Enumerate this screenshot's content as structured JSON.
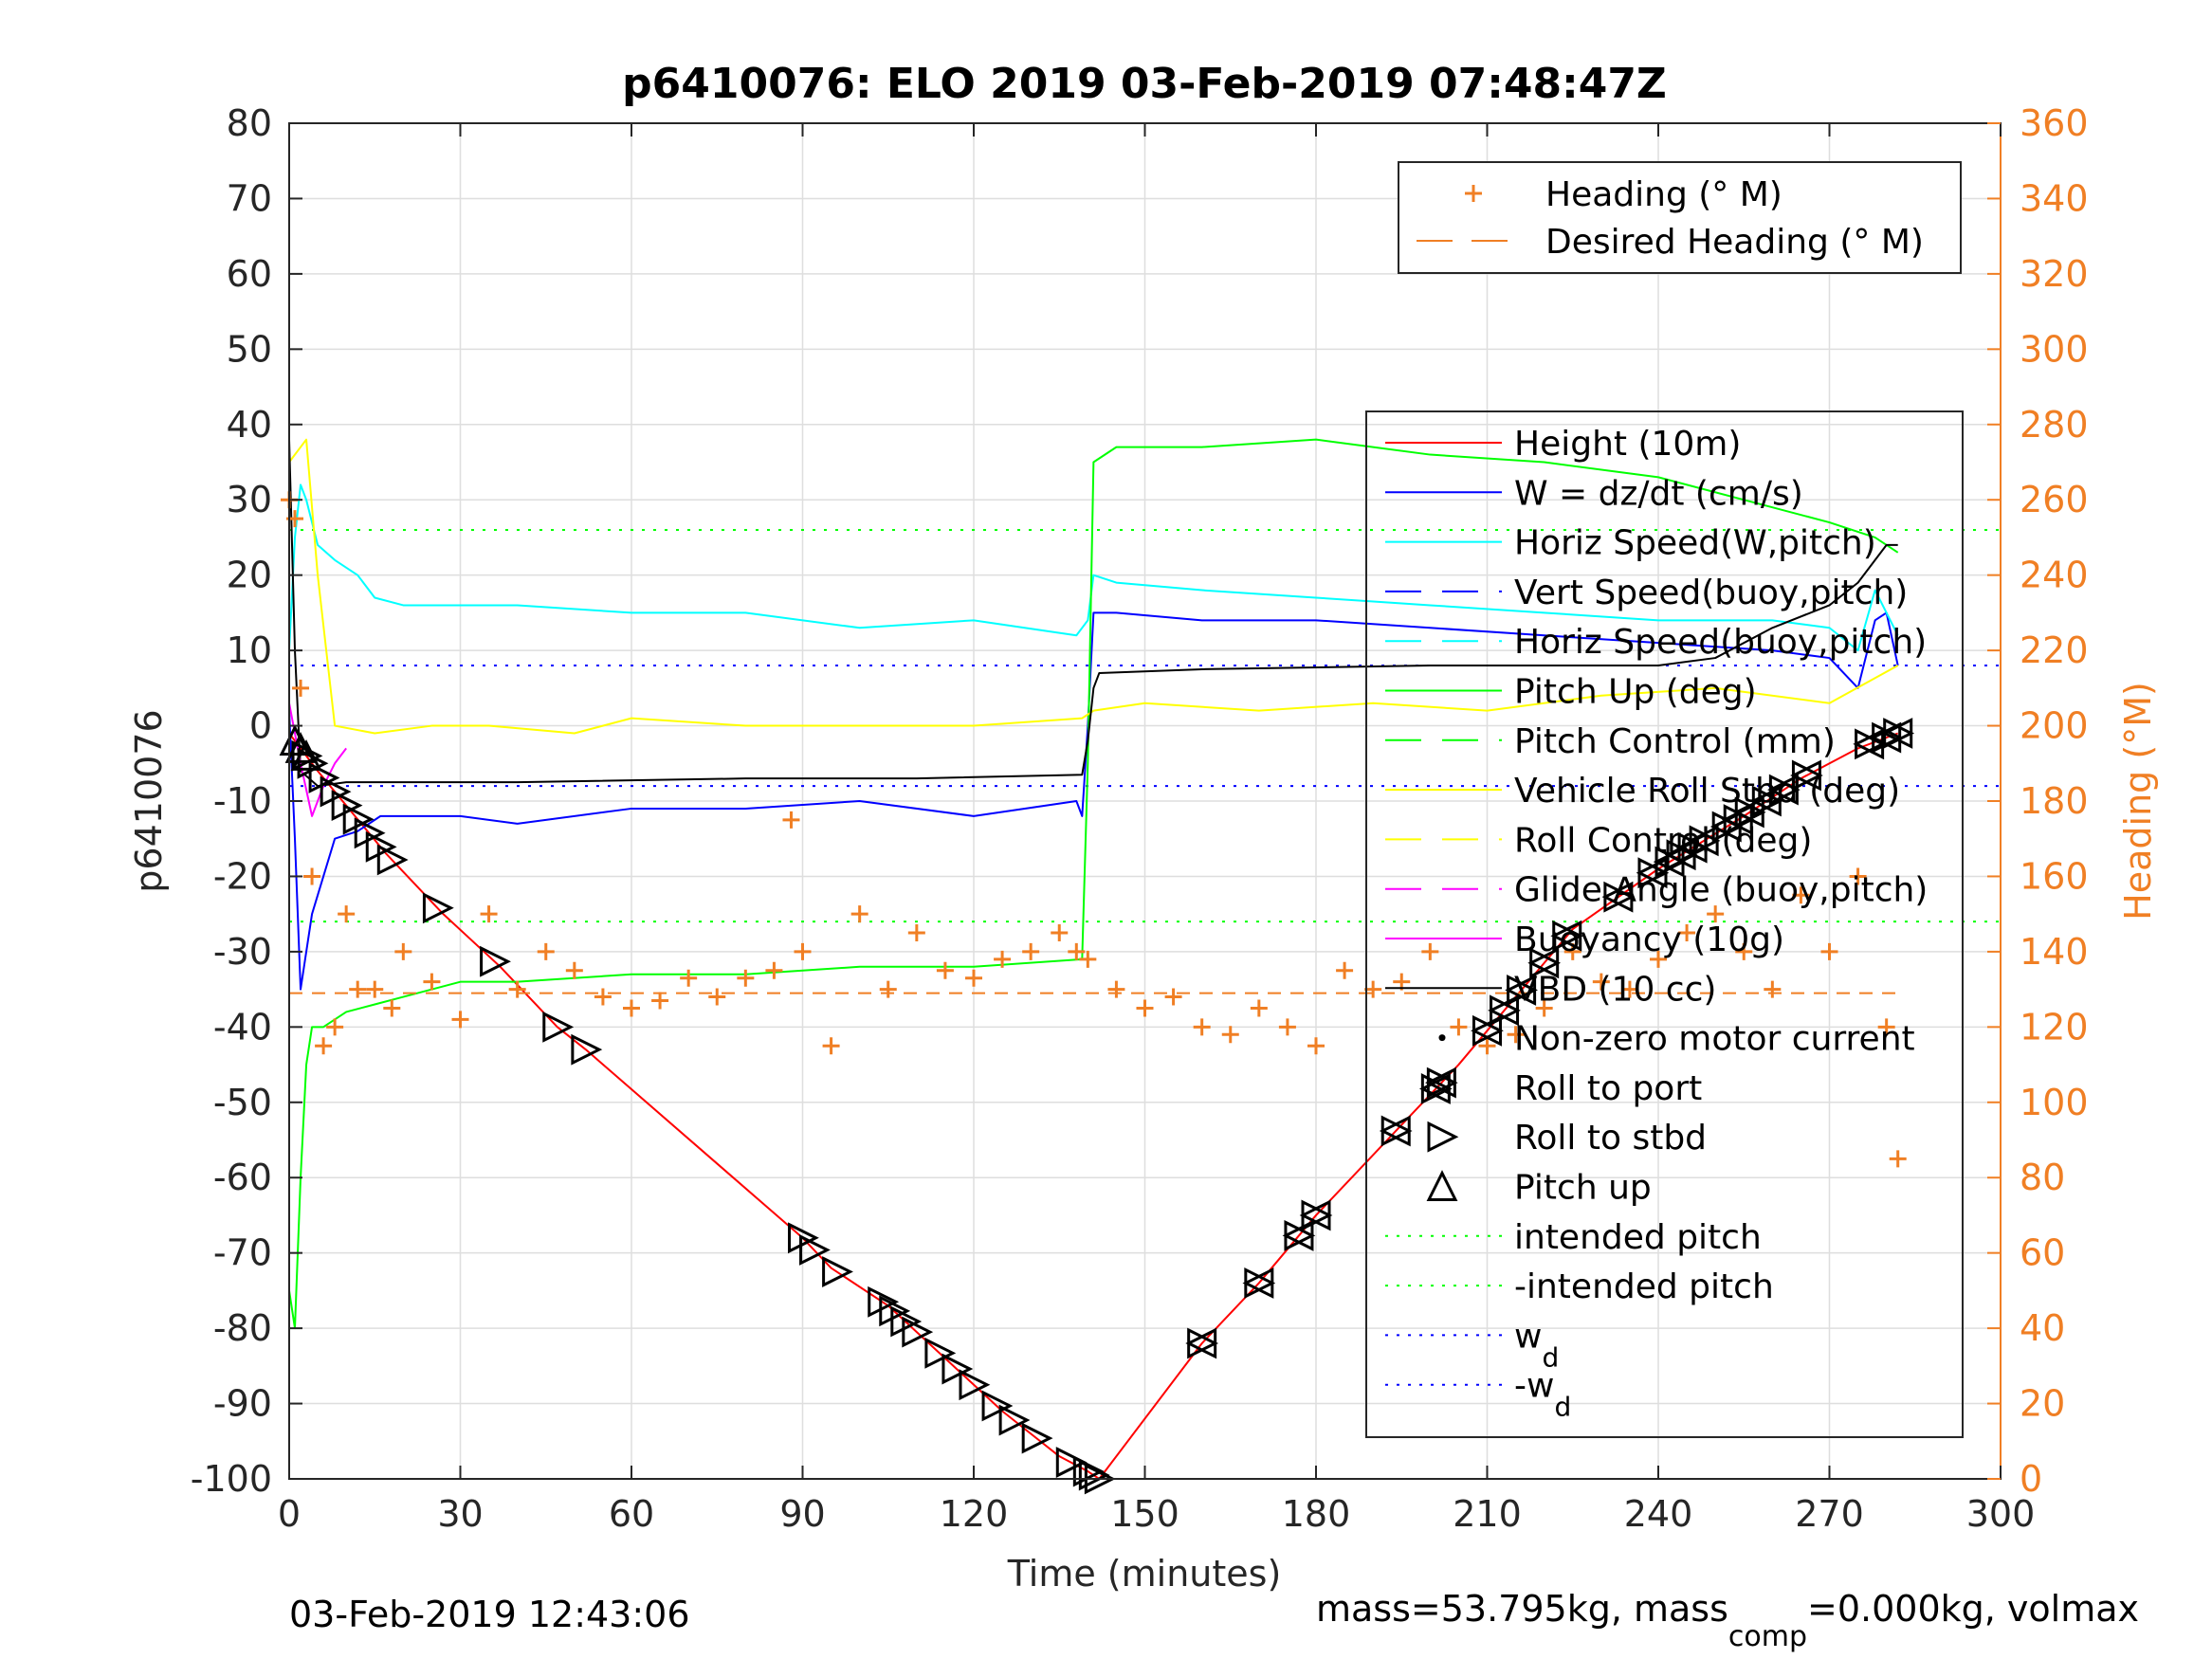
{
  "chart_data": {
    "type": "line",
    "title": "p6410076: ELO 2019 03-Feb-2019 07:48:47Z",
    "xlabel": "Time (minutes)",
    "ylabel": "p6410076",
    "ylabel_right": "Heading (°M)",
    "xlim": [
      0,
      300
    ],
    "ylim": [
      -100,
      80
    ],
    "ylim_right": [
      0,
      360
    ],
    "x_ticks": [
      0,
      30,
      60,
      90,
      120,
      150,
      180,
      210,
      240,
      270,
      300
    ],
    "y_ticks": [
      80,
      70,
      60,
      50,
      40,
      30,
      20,
      10,
      0,
      -10,
      -20,
      -30,
      -40,
      -50,
      -60,
      -70,
      -80,
      -90,
      -100
    ],
    "y_ticks_right": [
      360,
      340,
      320,
      300,
      280,
      260,
      240,
      220,
      200,
      180,
      160,
      140,
      120,
      100,
      80,
      60,
      40,
      20,
      0
    ],
    "grid": true,
    "legend_heading": [
      "Heading (° M)",
      "Desired Heading (° M)"
    ],
    "legend_main": [
      {
        "label": "Height (10m)",
        "color": "#ff0000",
        "style": "solid"
      },
      {
        "label": "W = dz/dt (cm/s)",
        "color": "#0000ff",
        "style": "solid"
      },
      {
        "label": "Horiz Speed(W,pitch)",
        "color": "#00ffff",
        "style": "solid"
      },
      {
        "label": "Vert Speed(buoy,pitch)",
        "color": "#0000ff",
        "style": "dashed"
      },
      {
        "label": "Horiz Speed(buoy,pitch)",
        "color": "#00ffff",
        "style": "dashed"
      },
      {
        "label": "Pitch Up (deg)",
        "color": "#00ff00",
        "style": "solid"
      },
      {
        "label": "Pitch Control (mm)",
        "color": "#00ff00",
        "style": "dashed"
      },
      {
        "label": "Vehicle Roll Stbd (deg)",
        "color": "#ffff00",
        "style": "solid"
      },
      {
        "label": "Roll Control (deg)",
        "color": "#ffff00",
        "style": "dashed"
      },
      {
        "label": "Glide Angle (buoy,pitch)",
        "color": "#ff00ff",
        "style": "dashed"
      },
      {
        "label": "Buoyancy (10g)",
        "color": "#ff00ff",
        "style": "solid"
      },
      {
        "label": "VBD (10 cc)",
        "color": "#000000",
        "style": "solid"
      },
      {
        "label": "Non-zero motor current",
        "color": "#000000",
        "style": "dot"
      },
      {
        "label": "Roll to port",
        "color": "#000000",
        "style": "triangle-left"
      },
      {
        "label": "Roll to stbd",
        "color": "#000000",
        "style": "triangle-right"
      },
      {
        "label": "Pitch up",
        "color": "#000000",
        "style": "triangle-up"
      },
      {
        "label": "intended pitch",
        "color": "#00ff00",
        "style": "dotted"
      },
      {
        "label": "-intended pitch",
        "color": "#00ff00",
        "style": "dotted"
      },
      {
        "label": "w",
        "sub": "d",
        "color": "#0000ff",
        "style": "dotted"
      },
      {
        "label": "-w",
        "sub": "d",
        "color": "#0000ff",
        "style": "dotted"
      }
    ],
    "series": [
      {
        "name": "Height (10m)",
        "color": "#ff0000",
        "x": [
          0,
          5,
          17,
          27,
          37,
          47,
          52,
          90,
          95,
          105,
          115,
          125,
          135,
          140,
          142,
          160,
          170,
          180,
          195,
          205,
          215,
          225,
          240,
          255,
          265,
          275,
          282
        ],
        "y": [
          -1,
          -6,
          -17,
          -25,
          -32,
          -40,
          -43,
          -68,
          -72,
          -77,
          -84,
          -91,
          -97,
          -99,
          -100,
          -82,
          -74,
          -65,
          -53,
          -45,
          -36,
          -27,
          -19,
          -12,
          -7,
          -3,
          -1
        ]
      },
      {
        "name": "W = dz/dt (cm/s)",
        "color": "#0000ff",
        "x": [
          0,
          1,
          2,
          4,
          6,
          8,
          12,
          16,
          20,
          30,
          40,
          60,
          80,
          100,
          120,
          138,
          139,
          140,
          141,
          145,
          160,
          180,
          200,
          220,
          240,
          260,
          270,
          275,
          278,
          280,
          282
        ],
        "y": [
          2,
          -15,
          -35,
          -25,
          -20,
          -15,
          -14,
          -12,
          -12,
          -12,
          -13,
          -11,
          -11,
          -10,
          -12,
          -10,
          -12,
          0,
          15,
          15,
          14,
          14,
          13,
          12,
          11,
          10,
          9,
          5,
          14,
          15,
          8
        ]
      },
      {
        "name": "Horiz Speed(W,pitch)",
        "color": "#00ffff",
        "x": [
          0,
          1,
          2,
          3,
          5,
          8,
          12,
          15,
          20,
          30,
          40,
          60,
          80,
          100,
          120,
          138,
          140,
          141,
          145,
          160,
          180,
          200,
          220,
          240,
          260,
          270,
          275,
          278,
          282
        ],
        "y": [
          10,
          25,
          32,
          30,
          24,
          22,
          20,
          17,
          16,
          16,
          16,
          15,
          15,
          13,
          14,
          12,
          14,
          20,
          19,
          18,
          17,
          16,
          15,
          14,
          14,
          13,
          10,
          18,
          12
        ]
      },
      {
        "name": "Pitch Up (deg)",
        "color": "#00ff00",
        "x": [
          0,
          1,
          2,
          3,
          4,
          6,
          10,
          15,
          20,
          30,
          40,
          60,
          80,
          100,
          120,
          139,
          140,
          141,
          145,
          160,
          180,
          190,
          200,
          220,
          240,
          260,
          270,
          278,
          282
        ],
        "y": [
          -75,
          -80,
          -60,
          -45,
          -40,
          -40,
          -38,
          -37,
          -36,
          -34,
          -34,
          -33,
          -33,
          -32,
          -32,
          -31,
          -5,
          35,
          37,
          37,
          38,
          37,
          36,
          35,
          33,
          29,
          27,
          25,
          23
        ]
      },
      {
        "name": "Vehicle Roll Stbd (deg)",
        "color": "#ffff00",
        "x": [
          0,
          3,
          5,
          8,
          15,
          25,
          35,
          50,
          60,
          80,
          100,
          120,
          139,
          141,
          150,
          170,
          190,
          210,
          230,
          250,
          270,
          282
        ],
        "y": [
          35,
          38,
          20,
          0,
          -1,
          0,
          0,
          -1,
          1,
          0,
          0,
          0,
          1,
          2,
          3,
          2,
          3,
          2,
          4,
          5,
          3,
          8
        ]
      },
      {
        "name": "VBD (10 cc)",
        "color": "#000000",
        "x": [
          0,
          1,
          2,
          5,
          10,
          40,
          80,
          110,
          139,
          140,
          141,
          142,
          160,
          200,
          240,
          250,
          260,
          270,
          275,
          280,
          282
        ],
        "y": [
          38,
          10,
          -6,
          -8,
          -7.5,
          -7.5,
          -7,
          -7,
          -6.5,
          -2,
          5,
          7,
          7.5,
          8,
          8,
          9,
          13,
          16,
          19,
          24,
          24
        ]
      },
      {
        "name": "Buoyancy (10g)",
        "color": "#ff00ff",
        "x": [
          0,
          2,
          4,
          6,
          8,
          10
        ],
        "y": [
          3,
          -5,
          -12,
          -8,
          -5,
          -3
        ]
      },
      {
        "name": "Heading (° M)",
        "axis": "right",
        "color": "#f07f24",
        "marker": "+",
        "x": [
          0,
          1,
          2,
          4,
          6,
          8,
          10,
          12,
          15,
          18,
          20,
          25,
          30,
          35,
          40,
          45,
          50,
          55,
          60,
          65,
          70,
          75,
          80,
          85,
          88,
          90,
          95,
          100,
          105,
          110,
          115,
          120,
          125,
          130,
          135,
          138,
          140,
          145,
          150,
          155,
          160,
          165,
          170,
          175,
          180,
          185,
          190,
          195,
          200,
          205,
          210,
          215,
          220,
          225,
          230,
          235,
          240,
          245,
          250,
          255,
          260,
          265,
          270,
          275,
          280,
          282
        ],
        "y": [
          260,
          255,
          210,
          160,
          115,
          120,
          150,
          130,
          130,
          125,
          140,
          132,
          122,
          150,
          130,
          140,
          135,
          128,
          125,
          127,
          133,
          128,
          133,
          135,
          175,
          140,
          115,
          150,
          130,
          145,
          135,
          133,
          138,
          140,
          145,
          140,
          138,
          130,
          125,
          128,
          120,
          118,
          125,
          120,
          115,
          135,
          130,
          132,
          140,
          120,
          115,
          118,
          125,
          140,
          132,
          130,
          138,
          145,
          150,
          140,
          130,
          155,
          140,
          160,
          120,
          85
        ]
      },
      {
        "name": "Desired Heading (° M)",
        "axis": "right",
        "color": "#f07f24",
        "style": "dashed",
        "x": [
          0,
          282
        ],
        "y": [
          129,
          129
        ]
      }
    ],
    "reference_lines": [
      {
        "name": "intended pitch",
        "y": 26,
        "color": "#00ff00"
      },
      {
        "name": "-intended pitch",
        "y": -26,
        "color": "#00ff00"
      },
      {
        "name": "w_d",
        "y": 8,
        "color": "#0000ff"
      },
      {
        "name": "-w_d",
        "y": -8,
        "color": "#0000ff"
      }
    ],
    "markers": [
      {
        "type": "pitch-up",
        "x": [
          1,
          2,
          3
        ]
      },
      {
        "type": "roll-stbd",
        "x": [
          3,
          4,
          6,
          8,
          10,
          12,
          14,
          16,
          18,
          26,
          36,
          47,
          52,
          90,
          92,
          96,
          104,
          106,
          108,
          110,
          114,
          117,
          120,
          124,
          127,
          131,
          137,
          140,
          141,
          142
        ]
      },
      {
        "type": "roll-port",
        "x": [
          160,
          170,
          177,
          180,
          194,
          201,
          202,
          210,
          213,
          216,
          220,
          224,
          233,
          239,
          242,
          244,
          246,
          248,
          252,
          254,
          256,
          259,
          262,
          266,
          277,
          280,
          282
        ]
      }
    ]
  },
  "footer": {
    "timestamp": "03-Feb-2019 12:43:06",
    "mass_text": "mass=53.795kg, mass",
    "mass_sub": "comp",
    "mass_text2": "=0.000kg, volmax"
  }
}
